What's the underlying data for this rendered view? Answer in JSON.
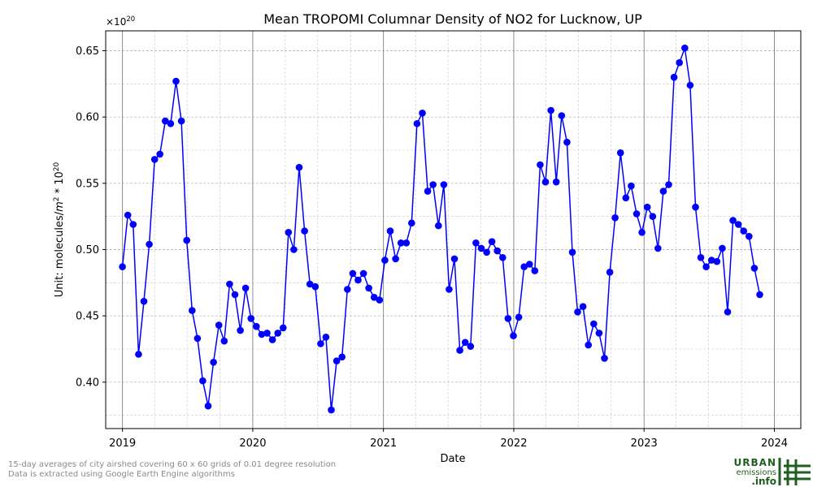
{
  "chart_data": {
    "type": "line",
    "title": "Mean TROPOMI Columnar Density of NO2 for Lucknow, UP",
    "xlabel": "Date",
    "ylabel_parts": {
      "pre": "Unit: molecules/",
      "m": "m",
      "m_exp": "2",
      "mid": " * 10",
      "ten_exp": "20"
    },
    "offset_parts": {
      "base": "×10",
      "exp": "20"
    },
    "xlim": [
      "2018-11-15",
      "2024-03-15"
    ],
    "ylim": [
      0.365,
      0.665
    ],
    "grid": true,
    "year_ticks": [
      "2019-01-01",
      "2020-01-01",
      "2021-01-01",
      "2022-01-01",
      "2023-01-01",
      "2024-01-01"
    ],
    "xtick_labels": [
      "2019",
      "2020",
      "2021",
      "2022",
      "2023",
      "2024"
    ],
    "yticks": [
      0.4,
      0.45,
      0.5,
      0.55,
      0.6,
      0.65
    ],
    "ytick_labels": [
      "0.40",
      "0.45",
      "0.50",
      "0.55",
      "0.60",
      "0.65"
    ],
    "series": [
      {
        "color": "#0000ff",
        "points": [
          [
            "2019-01-01",
            0.487
          ],
          [
            "2019-01-16",
            0.526
          ],
          [
            "2019-01-31",
            0.519
          ],
          [
            "2019-02-15",
            0.421
          ],
          [
            "2019-03-02",
            0.461
          ],
          [
            "2019-03-17",
            0.504
          ],
          [
            "2019-04-01",
            0.568
          ],
          [
            "2019-04-16",
            0.572
          ],
          [
            "2019-05-01",
            0.597
          ],
          [
            "2019-05-16",
            0.595
          ],
          [
            "2019-05-31",
            0.627
          ],
          [
            "2019-06-15",
            0.597
          ],
          [
            "2019-06-30",
            0.507
          ],
          [
            "2019-07-15",
            0.454
          ],
          [
            "2019-07-30",
            0.433
          ],
          [
            "2019-08-14",
            0.401
          ],
          [
            "2019-08-29",
            0.382
          ],
          [
            "2019-09-13",
            0.415
          ],
          [
            "2019-09-28",
            0.443
          ],
          [
            "2019-10-13",
            0.431
          ],
          [
            "2019-10-28",
            0.474
          ],
          [
            "2019-11-12",
            0.466
          ],
          [
            "2019-11-27",
            0.439
          ],
          [
            "2019-12-12",
            0.471
          ],
          [
            "2019-12-27",
            0.448
          ],
          [
            "2020-01-11",
            0.442
          ],
          [
            "2020-01-26",
            0.436
          ],
          [
            "2020-02-10",
            0.437
          ],
          [
            "2020-02-25",
            0.432
          ],
          [
            "2020-03-11",
            0.437
          ],
          [
            "2020-03-26",
            0.441
          ],
          [
            "2020-04-10",
            0.513
          ],
          [
            "2020-04-25",
            0.5
          ],
          [
            "2020-05-10",
            0.562
          ],
          [
            "2020-05-25",
            0.514
          ],
          [
            "2020-06-09",
            0.474
          ],
          [
            "2020-06-24",
            0.472
          ],
          [
            "2020-07-09",
            0.429
          ],
          [
            "2020-07-24",
            0.434
          ],
          [
            "2020-08-08",
            0.379
          ],
          [
            "2020-08-23",
            0.416
          ],
          [
            "2020-09-07",
            0.419
          ],
          [
            "2020-09-22",
            0.47
          ],
          [
            "2020-10-07",
            0.482
          ],
          [
            "2020-10-22",
            0.477
          ],
          [
            "2020-11-06",
            0.482
          ],
          [
            "2020-11-21",
            0.471
          ],
          [
            "2020-12-06",
            0.464
          ],
          [
            "2020-12-21",
            0.462
          ],
          [
            "2021-01-05",
            0.492
          ],
          [
            "2021-01-20",
            0.514
          ],
          [
            "2021-02-04",
            0.493
          ],
          [
            "2021-02-19",
            0.505
          ],
          [
            "2021-03-06",
            0.505
          ],
          [
            "2021-03-21",
            0.52
          ],
          [
            "2021-04-05",
            0.595
          ],
          [
            "2021-04-20",
            0.603
          ],
          [
            "2021-05-05",
            0.544
          ],
          [
            "2021-05-20",
            0.549
          ],
          [
            "2021-06-04",
            0.518
          ],
          [
            "2021-06-19",
            0.549
          ],
          [
            "2021-07-04",
            0.47
          ],
          [
            "2021-07-19",
            0.493
          ],
          [
            "2021-08-03",
            0.424
          ],
          [
            "2021-08-18",
            0.43
          ],
          [
            "2021-09-02",
            0.427
          ],
          [
            "2021-09-17",
            0.505
          ],
          [
            "2021-10-02",
            0.501
          ],
          [
            "2021-10-17",
            0.498
          ],
          [
            "2021-11-01",
            0.506
          ],
          [
            "2021-11-16",
            0.499
          ],
          [
            "2021-12-01",
            0.494
          ],
          [
            "2021-12-16",
            0.448
          ],
          [
            "2021-12-31",
            0.435
          ],
          [
            "2022-01-15",
            0.449
          ],
          [
            "2022-01-30",
            0.487
          ],
          [
            "2022-02-14",
            0.489
          ],
          [
            "2022-03-01",
            0.484
          ],
          [
            "2022-03-16",
            0.564
          ],
          [
            "2022-03-31",
            0.551
          ],
          [
            "2022-04-15",
            0.605
          ],
          [
            "2022-04-30",
            0.551
          ],
          [
            "2022-05-15",
            0.601
          ],
          [
            "2022-05-30",
            0.581
          ],
          [
            "2022-06-14",
            0.498
          ],
          [
            "2022-06-29",
            0.453
          ],
          [
            "2022-07-14",
            0.457
          ],
          [
            "2022-07-29",
            0.428
          ],
          [
            "2022-08-13",
            0.444
          ],
          [
            "2022-08-28",
            0.437
          ],
          [
            "2022-09-12",
            0.418
          ],
          [
            "2022-09-27",
            0.483
          ],
          [
            "2022-10-12",
            0.524
          ],
          [
            "2022-10-27",
            0.573
          ],
          [
            "2022-11-11",
            0.539
          ],
          [
            "2022-11-26",
            0.548
          ],
          [
            "2022-12-11",
            0.527
          ],
          [
            "2022-12-26",
            0.513
          ],
          [
            "2023-01-10",
            0.532
          ],
          [
            "2023-01-25",
            0.525
          ],
          [
            "2023-02-09",
            0.501
          ],
          [
            "2023-02-24",
            0.544
          ],
          [
            "2023-03-11",
            0.549
          ],
          [
            "2023-03-26",
            0.63
          ],
          [
            "2023-04-10",
            0.641
          ],
          [
            "2023-04-25",
            0.652
          ],
          [
            "2023-05-10",
            0.624
          ],
          [
            "2023-05-25",
            0.532
          ],
          [
            "2023-06-09",
            0.494
          ],
          [
            "2023-06-24",
            0.487
          ],
          [
            "2023-07-09",
            0.492
          ],
          [
            "2023-07-24",
            0.491
          ],
          [
            "2023-08-08",
            0.501
          ],
          [
            "2023-08-23",
            0.453
          ],
          [
            "2023-09-07",
            0.522
          ],
          [
            "2023-09-22",
            0.519
          ],
          [
            "2023-10-07",
            0.514
          ],
          [
            "2023-10-22",
            0.51
          ],
          [
            "2023-11-06",
            0.486
          ],
          [
            "2023-11-21",
            0.466
          ]
        ]
      }
    ]
  },
  "footnote": {
    "line1": "15-day averages of city airshed covering 60 x 60 grids of 0.01 degree resolution",
    "line2": "Data is extracted using Google Earth Engine algorithms"
  },
  "logo": {
    "line1": "URBAN",
    "line2": "emissions",
    "line3": ".info",
    "color": "#1f5f1f"
  }
}
